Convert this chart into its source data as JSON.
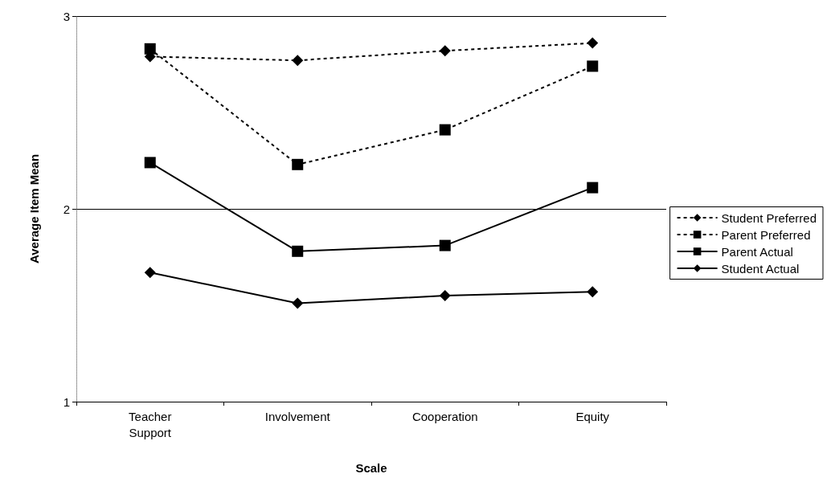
{
  "chart_data": {
    "type": "line",
    "xlabel": "Scale",
    "ylabel": "Average Item Mean",
    "categories": [
      "Teacher\nSupport",
      "Involvement",
      "Cooperation",
      "Equity"
    ],
    "series": [
      {
        "name": "Student Preferred",
        "color": "#000000",
        "marker": "diamond",
        "line_style": "dashed",
        "values": [
          2.79,
          2.77,
          2.82,
          2.86
        ]
      },
      {
        "name": "Parent Preferred",
        "color": "#000000",
        "marker": "square",
        "line_style": "dashed",
        "values": [
          2.83,
          2.23,
          2.41,
          2.74
        ]
      },
      {
        "name": "Parent Actual",
        "color": "#000000",
        "marker": "square",
        "line_style": "solid",
        "values": [
          2.24,
          1.78,
          1.81,
          2.11
        ]
      },
      {
        "name": "Student Actual",
        "color": "#000000",
        "marker": "diamond",
        "line_style": "solid",
        "values": [
          1.67,
          1.51,
          1.55,
          1.57
        ]
      }
    ],
    "ylim": [
      1,
      3
    ],
    "yticks": [
      1,
      2,
      3
    ],
    "grid": "y",
    "legend": "right"
  }
}
